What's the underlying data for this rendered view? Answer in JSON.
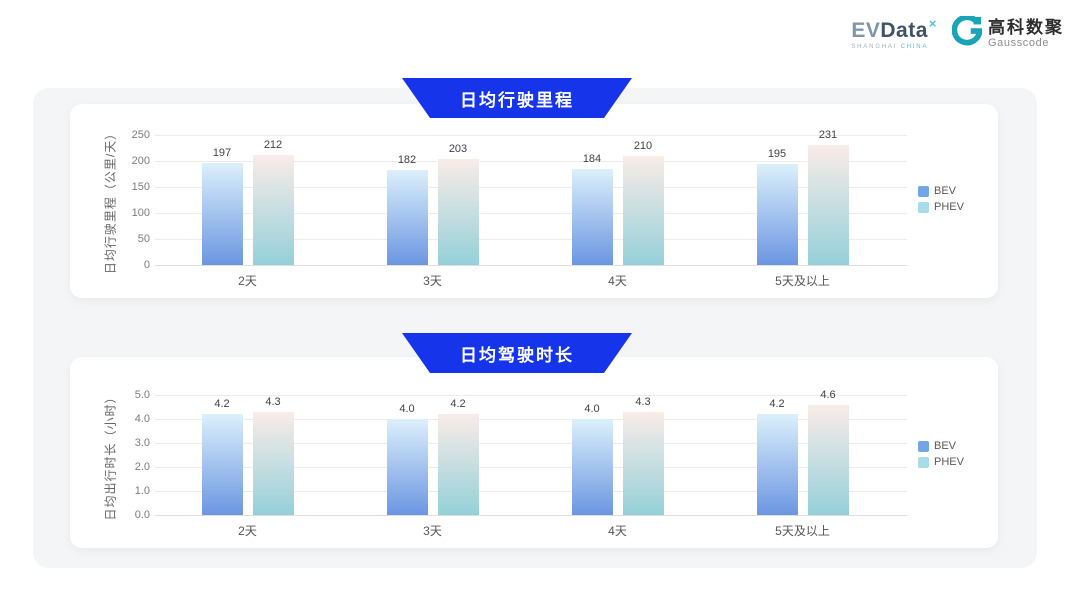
{
  "header": {
    "evdata_logo": {
      "part1": "EV",
      "part2": "Data",
      "superscript": "×",
      "subtext1": "SHANGHAI",
      "subtext2": "CHINA"
    },
    "gausscode_logo": {
      "name_cn": "高科数聚",
      "name_en": "Gausscode"
    }
  },
  "palette": {
    "banner_blue": "#1634ea",
    "bev_bar_top": "#dcf0fb",
    "bev_bar_bottom": "#6b96e1",
    "phev_bar_top": "#f9ece8",
    "phev_bar_bottom": "#95d0d9",
    "bev_legend": "#72a6e6",
    "phev_legend": "#a8dce8",
    "panel_bg": "#f4f5f7",
    "card_bg": "#ffffff"
  },
  "chart_data": [
    {
      "type": "bar",
      "title": "日均行驶里程",
      "ylabel": "日均行驶里程（公里/天）",
      "categories": [
        "2天",
        "3天",
        "4天",
        "5天及以上"
      ],
      "series": [
        {
          "name": "BEV",
          "values": [
            197,
            182,
            184,
            195
          ],
          "labels": [
            "197",
            "182",
            "184",
            "195"
          ]
        },
        {
          "name": "PHEV",
          "values": [
            212,
            203,
            210,
            231
          ],
          "labels": [
            "212",
            "203",
            "210",
            "231"
          ]
        }
      ],
      "ylim": [
        0,
        250
      ],
      "yticks": [
        0,
        50,
        100,
        150,
        200,
        250
      ],
      "ytick_labels": [
        "0",
        "50",
        "100",
        "150",
        "200",
        "250"
      ],
      "grid": true,
      "legend_position": "right"
    },
    {
      "type": "bar",
      "title": "日均驾驶时长",
      "ylabel": "日均出行时长（小时）",
      "categories": [
        "2天",
        "3天",
        "4天",
        "5天及以上"
      ],
      "series": [
        {
          "name": "BEV",
          "values": [
            4.2,
            4.0,
            4.0,
            4.2
          ],
          "labels": [
            "4.2",
            "4.0",
            "4.0",
            "4.2"
          ]
        },
        {
          "name": "PHEV",
          "values": [
            4.3,
            4.2,
            4.3,
            4.6
          ],
          "labels": [
            "4.3",
            "4.2",
            "4.3",
            "4.6"
          ]
        }
      ],
      "ylim": [
        0,
        5
      ],
      "yticks": [
        0,
        1,
        2,
        3,
        4,
        5
      ],
      "ytick_labels": [
        "0.0",
        "1.0",
        "2.0",
        "3.0",
        "4.0",
        "5.0"
      ],
      "grid": true,
      "legend_position": "right"
    }
  ]
}
